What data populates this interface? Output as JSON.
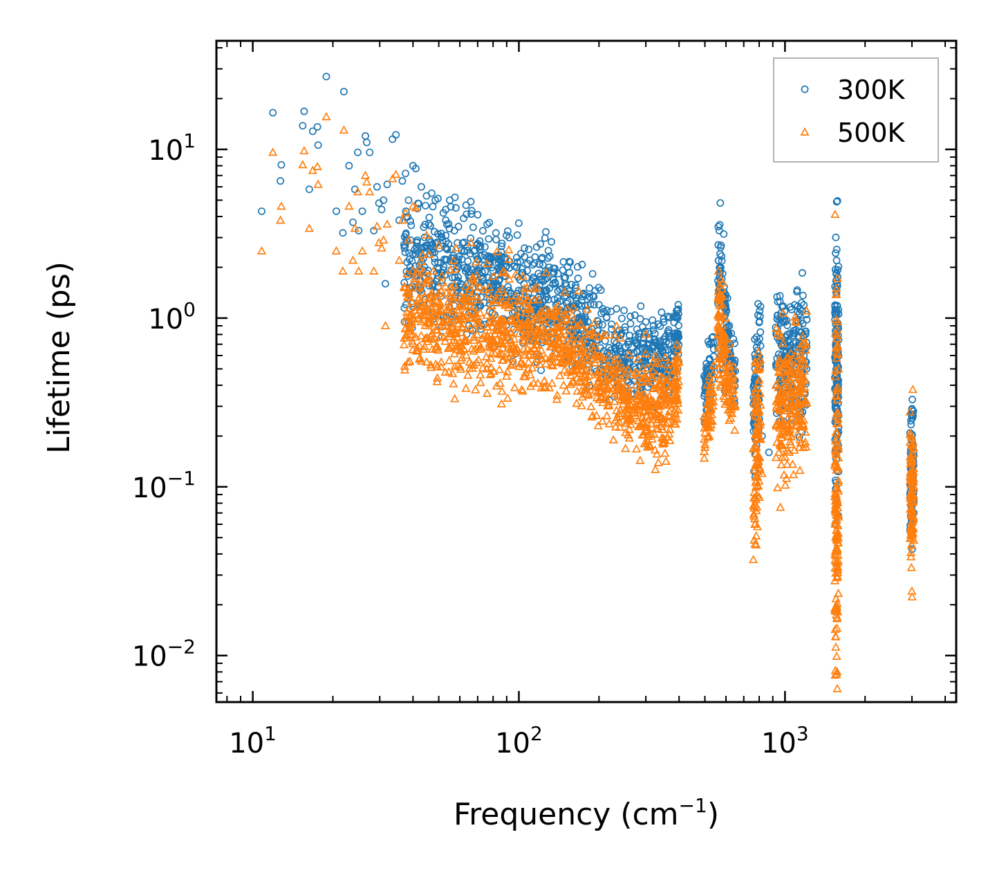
{
  "chart_data": {
    "type": "scatter",
    "xscale": "log",
    "yscale": "log",
    "xlabel": "Frequency (cm",
    "xlabel_sup": "−1",
    "xlabel_end": ")",
    "ylabel": "Lifetime (ps)",
    "xlim": [
      7.3,
      4400
    ],
    "ylim": [
      0.0053,
      44
    ],
    "xticks": [
      {
        "value": 10,
        "base": "10",
        "exp": "1"
      },
      {
        "value": 100,
        "base": "10",
        "exp": "2"
      },
      {
        "value": 1000,
        "base": "10",
        "exp": "3"
      }
    ],
    "yticks": [
      {
        "value": 0.01,
        "base": "10",
        "exp": "−2"
      },
      {
        "value": 0.1,
        "base": "10",
        "exp": "−1"
      },
      {
        "value": 1,
        "base": "10",
        "exp": "0"
      },
      {
        "value": 10,
        "base": "10",
        "exp": "1"
      }
    ],
    "legend_position": "top-right",
    "series": [
      {
        "name": "300K",
        "marker": "circle",
        "color": "#1f77b4",
        "points": [
          [
            10.8,
            4.3
          ],
          [
            11.9,
            16.5
          ],
          [
            12.8,
            8.1
          ],
          [
            12.7,
            6.5
          ],
          [
            15.6,
            16.8
          ],
          [
            15.4,
            13.8
          ],
          [
            16.3,
            5.8
          ],
          [
            16.8,
            12.8
          ],
          [
            17.5,
            13.6
          ],
          [
            17.6,
            10.6
          ],
          [
            18.9,
            27
          ],
          [
            20.6,
            4.3
          ],
          [
            21.8,
            3.2
          ],
          [
            22.0,
            22
          ],
          [
            23.0,
            8.0
          ],
          [
            23.8,
            3.7
          ],
          [
            24.2,
            5.8
          ],
          [
            24.8,
            9.6
          ],
          [
            25.0,
            3.3
          ],
          [
            25.8,
            4.3
          ],
          [
            26.5,
            12
          ],
          [
            26.8,
            11
          ],
          [
            27.5,
            9.6
          ],
          [
            28.5,
            3.3
          ],
          [
            29.3,
            6.0
          ],
          [
            29.8,
            4.8
          ],
          [
            30.5,
            4.4
          ],
          [
            31.0,
            5.0
          ],
          [
            31.5,
            1.6
          ],
          [
            32.0,
            6.2
          ],
          [
            33.5,
            11.5
          ],
          [
            34.5,
            12.2
          ],
          [
            35.5,
            3.8
          ],
          [
            36.5,
            6.5
          ],
          [
            37.5,
            7.2
          ],
          [
            38.5,
            5.0
          ],
          [
            40.0,
            8.0
          ],
          [
            41.0,
            7.7
          ],
          [
            43.0,
            6.0
          ],
          [
            45.0,
            5.3
          ],
          [
            47.0,
            5.5
          ],
          [
            48.5,
            5.0
          ],
          [
            52.0,
            4.2
          ],
          [
            55.0,
            5.0
          ],
          [
            58.0,
            4.5
          ],
          [
            62.0,
            3.9
          ],
          [
            66.0,
            4.9
          ],
          [
            70.0,
            4.1
          ],
          [
            76.0,
            3.6
          ],
          [
            82.0,
            3.2
          ],
          [
            92.0,
            3.0
          ],
          [
            105.0,
            2.6
          ],
          [
            115.0,
            2.3
          ],
          [
            130.0,
            2.0
          ],
          [
            150.0,
            1.6
          ],
          [
            175.0,
            1.4
          ],
          [
            200.0,
            1.2
          ],
          [
            230.0,
            0.8
          ],
          [
            300.0,
            0.95
          ],
          [
            320.0,
            0.85
          ],
          [
            395.0,
            1.0
          ],
          [
            520.0,
            0.7
          ],
          [
            570.0,
            2.4
          ],
          [
            575.0,
            2.7
          ],
          [
            640.0,
            0.75
          ],
          [
            770.0,
            0.75
          ],
          [
            790.0,
            0.72
          ],
          [
            820.0,
            0.2
          ],
          [
            870.0,
            0.16
          ],
          [
            940.0,
            1.25
          ],
          [
            1000.0,
            0.95
          ],
          [
            1160.0,
            1.1
          ],
          [
            1200.0,
            1.05
          ],
          [
            1560.0,
            1.85
          ],
          [
            1570.0,
            1.6
          ],
          [
            3000.0,
            0.29
          ]
        ],
        "bands": [
          {
            "x": [
              37,
              130
            ],
            "n": 560,
            "yc1": 2.2,
            "yc2": 1.3,
            "spread": 0.17
          },
          {
            "x": [
              130,
              265
            ],
            "n": 300,
            "yc1": 1.3,
            "yc2": 0.55,
            "spread": 0.14
          },
          {
            "x": [
              270,
              370
            ],
            "n": 160,
            "yc1": 0.6,
            "yc2": 0.6,
            "spread": 0.15
          },
          {
            "x": [
              380,
              400
            ],
            "n": 50,
            "yc1": 0.6,
            "yc2": 0.9,
            "spread": 0.1
          },
          {
            "x": [
              495,
              540
            ],
            "n": 60,
            "yc1": 0.35,
            "yc2": 0.6,
            "spread": 0.1
          },
          {
            "x": [
              560,
              600
            ],
            "n": 80,
            "yc1": 1.8,
            "yc2": 0.8,
            "spread": 0.18
          },
          {
            "x": [
              600,
              650
            ],
            "n": 50,
            "yc1": 0.8,
            "yc2": 0.45,
            "spread": 0.1
          },
          {
            "x": [
              760,
              810
            ],
            "n": 90,
            "yc1": 0.25,
            "yc2": 0.6,
            "spread": 0.18
          },
          {
            "x": [
              920,
              1210
            ],
            "n": 200,
            "yc1": 0.55,
            "yc2": 0.6,
            "spread": 0.2
          },
          {
            "x": [
              1540,
              1590
            ],
            "n": 140,
            "yc1": 0.5,
            "yc2": 0.5,
            "spread": 0.35
          },
          {
            "x": [
              2950,
              3050
            ],
            "n": 90,
            "yc1": 0.12,
            "yc2": 0.12,
            "spread": 0.22
          }
        ]
      },
      {
        "name": "500K",
        "marker": "triangle",
        "color": "#ff7f0e",
        "points": [
          [
            10.8,
            2.5
          ],
          [
            11.9,
            9.6
          ],
          [
            12.8,
            4.6
          ],
          [
            12.7,
            3.8
          ],
          [
            15.6,
            9.8
          ],
          [
            15.4,
            8.1
          ],
          [
            16.3,
            3.4
          ],
          [
            16.8,
            7.5
          ],
          [
            17.5,
            7.9
          ],
          [
            17.6,
            6.2
          ],
          [
            18.9,
            15.6
          ],
          [
            20.6,
            2.5
          ],
          [
            21.8,
            1.9
          ],
          [
            22.0,
            13
          ],
          [
            23.0,
            4.6
          ],
          [
            23.8,
            2.2
          ],
          [
            24.2,
            3.4
          ],
          [
            24.8,
            5.6
          ],
          [
            25.0,
            1.9
          ],
          [
            25.8,
            2.5
          ],
          [
            26.5,
            7.0
          ],
          [
            26.8,
            6.4
          ],
          [
            27.5,
            5.6
          ],
          [
            28.5,
            1.9
          ],
          [
            29.3,
            3.5
          ],
          [
            29.8,
            2.8
          ],
          [
            30.5,
            2.6
          ],
          [
            31.0,
            2.9
          ],
          [
            31.5,
            0.9
          ],
          [
            32.0,
            3.6
          ],
          [
            33.5,
            6.7
          ],
          [
            34.5,
            7.1
          ],
          [
            35.5,
            2.2
          ],
          [
            36.5,
            3.8
          ],
          [
            37.5,
            4.2
          ],
          [
            38.5,
            2.9
          ],
          [
            40.0,
            4.6
          ],
          [
            41.0,
            4.5
          ],
          [
            45.0,
            3.1
          ],
          [
            50.0,
            2.7
          ],
          [
            58.0,
            2.6
          ],
          [
            66.0,
            2.8
          ],
          [
            76.0,
            2.1
          ],
          [
            92.0,
            1.7
          ],
          [
            105.0,
            1.5
          ],
          [
            130.0,
            1.1
          ],
          [
            150.0,
            0.9
          ],
          [
            175.0,
            0.75
          ],
          [
            200.0,
            0.6
          ],
          [
            260.0,
            0.25
          ],
          [
            300.0,
            0.8
          ],
          [
            320.0,
            0.55
          ],
          [
            395.0,
            0.55
          ],
          [
            520.0,
            0.45
          ],
          [
            575.0,
            1.7
          ],
          [
            640.0,
            0.32
          ],
          [
            770.0,
            0.06
          ],
          [
            790.0,
            0.5
          ],
          [
            820.0,
            0.12
          ],
          [
            940.0,
            0.8
          ],
          [
            1000.0,
            0.15
          ],
          [
            1160.0,
            0.7
          ],
          [
            1200.0,
            0.7
          ],
          [
            1560.0,
            1.5
          ],
          [
            1570.0,
            0.008
          ],
          [
            3000.0,
            0.045
          ]
        ],
        "bands": [
          {
            "x": [
              37,
              130
            ],
            "n": 560,
            "yc1": 1.05,
            "yc2": 0.75,
            "spread": 0.17
          },
          {
            "x": [
              130,
              265
            ],
            "n": 320,
            "yc1": 0.75,
            "yc2": 0.32,
            "spread": 0.14
          },
          {
            "x": [
              270,
              370
            ],
            "n": 180,
            "yc1": 0.3,
            "yc2": 0.3,
            "spread": 0.14
          },
          {
            "x": [
              380,
              400
            ],
            "n": 50,
            "yc1": 0.35,
            "yc2": 0.45,
            "spread": 0.1
          },
          {
            "x": [
              495,
              540
            ],
            "n": 60,
            "yc1": 0.2,
            "yc2": 0.4,
            "spread": 0.1
          },
          {
            "x": [
              560,
              600
            ],
            "n": 80,
            "yc1": 1.0,
            "yc2": 0.5,
            "spread": 0.18
          },
          {
            "x": [
              600,
              650
            ],
            "n": 50,
            "yc1": 0.5,
            "yc2": 0.3,
            "spread": 0.1
          },
          {
            "x": [
              760,
              810
            ],
            "n": 100,
            "yc1": 0.1,
            "yc2": 0.3,
            "spread": 0.25
          },
          {
            "x": [
              920,
              1210
            ],
            "n": 220,
            "yc1": 0.3,
            "yc2": 0.35,
            "spread": 0.22
          },
          {
            "x": [
              1540,
              1590
            ],
            "n": 160,
            "yc1": 0.1,
            "yc2": 0.1,
            "spread": 0.55
          },
          {
            "x": [
              2950,
              3050
            ],
            "n": 100,
            "yc1": 0.08,
            "yc2": 0.08,
            "spread": 0.22
          }
        ]
      }
    ]
  }
}
